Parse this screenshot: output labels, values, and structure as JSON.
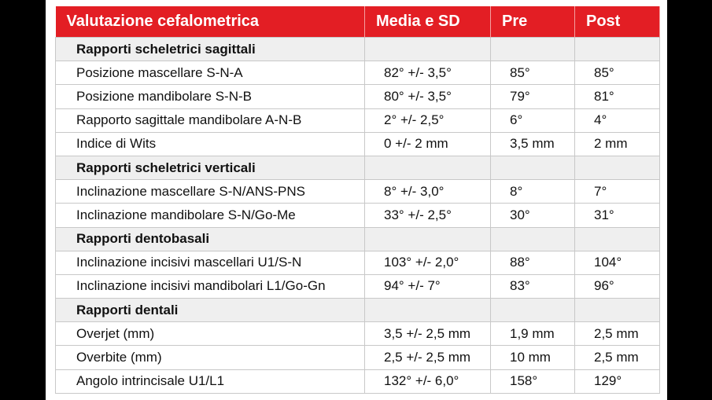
{
  "table": {
    "header": [
      "Valutazione cefalometrica",
      "Media e SD",
      "Pre",
      "Post"
    ],
    "rows": [
      [
        "Rapporti scheletrici sagittali"
      ],
      [
        "Posizione mascellare S-N-A",
        "82° +/- 3,5°",
        "85°",
        "85°"
      ],
      [
        "Posizione mandibolare S-N-B",
        "80° +/- 3,5°",
        "79°",
        "81°"
      ],
      [
        "Rapporto sagittale mandibolare A-N-B",
        "2° +/- 2,5°",
        "6°",
        "4°"
      ],
      [
        "Indice di Wits",
        "0 +/- 2 mm",
        "3,5 mm",
        "2 mm"
      ],
      [
        "Rapporti scheletrici verticali"
      ],
      [
        "Inclinazione mascellare S-N/ANS-PNS",
        "8° +/- 3,0°",
        "8°",
        "7°"
      ],
      [
        "Inclinazione mandibolare S-N/Go-Me",
        "33° +/- 2,5°",
        "30°",
        "31°"
      ],
      [
        "Rapporti dentobasali"
      ],
      [
        "Inclinazione incisivi mascellari U1/S-N",
        "103° +/- 2,0°",
        "88°",
        "104°"
      ],
      [
        "Inclinazione incisivi mandibolari L1/Go-Gn",
        "94° +/- 7°",
        "83°",
        "96°"
      ],
      [
        "Rapporti dentali"
      ],
      [
        "Overjet (mm)",
        "3,5 +/- 2,5 mm",
        "1,9 mm",
        "2,5 mm"
      ],
      [
        "Overbite (mm)",
        "2,5 +/- 2,5 mm",
        "10 mm",
        "2,5 mm"
      ],
      [
        "Angolo intrincisale U1/L1",
        "132° +/- 6,0°",
        "158°",
        "129°"
      ]
    ]
  }
}
